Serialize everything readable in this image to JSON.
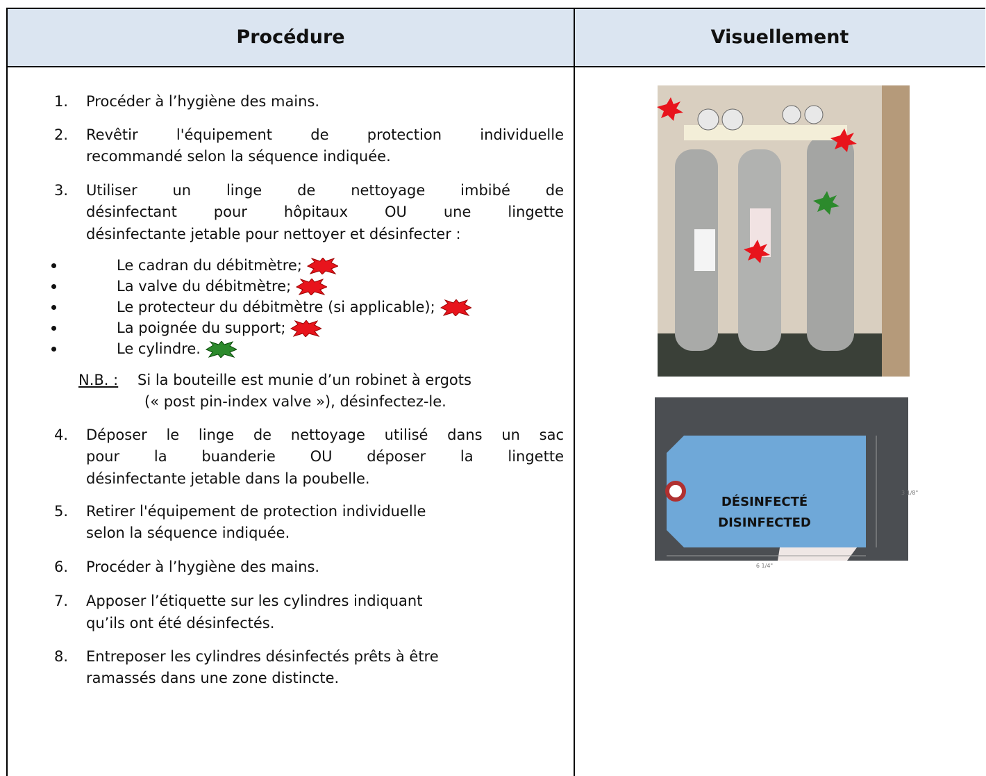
{
  "header": {
    "columns": [
      "Procédure",
      "Visuellement"
    ]
  },
  "steps": [
    {
      "number": "1.",
      "lines": [
        "Procéder à l’hygiène des mains."
      ]
    },
    {
      "number": "2.",
      "lines": [
        "Revêtir l'équipement de protection individuelle",
        "recommandé selon la séquence indiquée."
      ]
    },
    {
      "number": "3.",
      "lines": [
        "Utiliser un linge de nettoyage imbibé de",
        "désinfectant pour hôpitaux OU une lingette",
        "désinfectante jetable pour nettoyer et désinfecter :"
      ],
      "subitems": [
        "Le cadran du débitmètre;",
        "La valve du débitmètre;",
        "Le protecteur du débitmètre (si applicable);",
        "La poignée du support;",
        "Le cylindre."
      ],
      "note": {
        "label": "N.B. :",
        "lines": [
          "Si la bouteille est munie d’un robinet à ergots",
          "(« post pin-index valve »), désinfectez-le."
        ]
      }
    },
    {
      "number": "4.",
      "lines": [
        "Déposer le linge de nettoyage utilisé dans un sac",
        "pour la buanderie OU déposer la lingette",
        "désinfectante jetable dans la poubelle."
      ]
    },
    {
      "number": "5.",
      "lines": [
        "Retirer l'équipement de protection individuelle",
        "selon la séquence indiquée."
      ]
    },
    {
      "number": "6.",
      "lines": [
        "Procéder à l’hygiène des mains."
      ]
    },
    {
      "number": "7.",
      "lines": [
        "Apposer l’étiquette sur les cylindres indiquant",
        "qu’ils ont été désinfectés."
      ]
    },
    {
      "number": "8.",
      "lines": [
        "Entreposer les cylindres désinfectés prêts à être",
        "ramassés dans une zone distincte."
      ]
    }
  ],
  "tag": {
    "line1": "DÉSINFECTÉ",
    "line2": "DISINFECTED",
    "height_label": "3 1/8\"",
    "width_label": "6 1/4\""
  }
}
